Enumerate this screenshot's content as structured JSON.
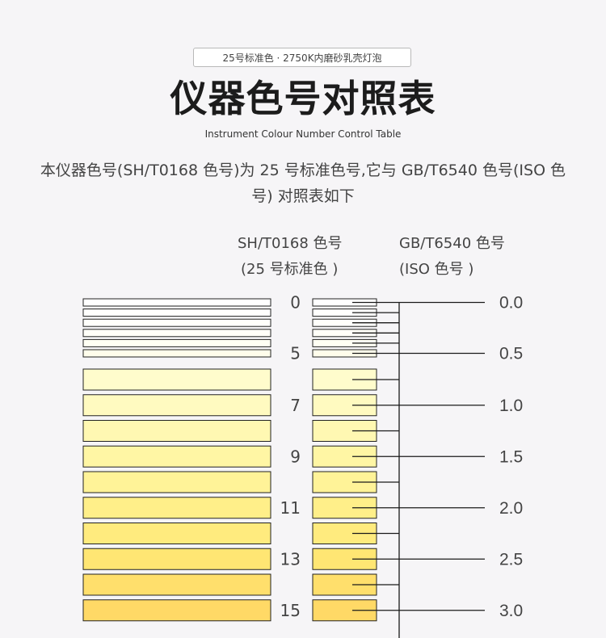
{
  "header": {
    "badge": "25号标准色 · 2750K内磨砂乳壳灯泡",
    "title": "仪器色号对照表",
    "subtitle_en": "Instrument Colour Number Control Table",
    "description": "本仪器色号(SH/T0168 色号)为 25 号标准色号,它与 GB/T6540 色号(ISO 色号) 对照表如下"
  },
  "columns": {
    "left_line1": "SH/T0168 色号",
    "left_line2": "(25 号标准色 )",
    "right_line1": "GB/T6540 色号",
    "right_line2": "(ISO 色号 )"
  },
  "rows": [
    {
      "sh": "0",
      "color": "#ffffff",
      "iso": "0.0"
    },
    {
      "sh": "",
      "color": "#fffffd",
      "iso": ""
    },
    {
      "sh": "",
      "color": "#fffffb",
      "iso": ""
    },
    {
      "sh": "",
      "color": "#fffff8",
      "iso": ""
    },
    {
      "sh": "",
      "color": "#fffff4",
      "iso": ""
    },
    {
      "sh": "5",
      "color": "#fffdeb",
      "iso": "0.5"
    },
    {
      "sh": "",
      "color": "#fffccc",
      "iso": ""
    },
    {
      "sh": "7",
      "color": "#fffac0",
      "iso": "1.0"
    },
    {
      "sh": "",
      "color": "#fff8b2",
      "iso": ""
    },
    {
      "sh": "9",
      "color": "#fff6a4",
      "iso": "1.5"
    },
    {
      "sh": "",
      "color": "#fff398",
      "iso": ""
    },
    {
      "sh": "11",
      "color": "#ffef89",
      "iso": "2.0"
    },
    {
      "sh": "",
      "color": "#ffeb7e",
      "iso": ""
    },
    {
      "sh": "13",
      "color": "#ffe673",
      "iso": "2.5"
    },
    {
      "sh": "",
      "color": "#ffdf6c",
      "iso": ""
    },
    {
      "sh": "15",
      "color": "#ffd966",
      "iso": "3.0"
    }
  ]
}
